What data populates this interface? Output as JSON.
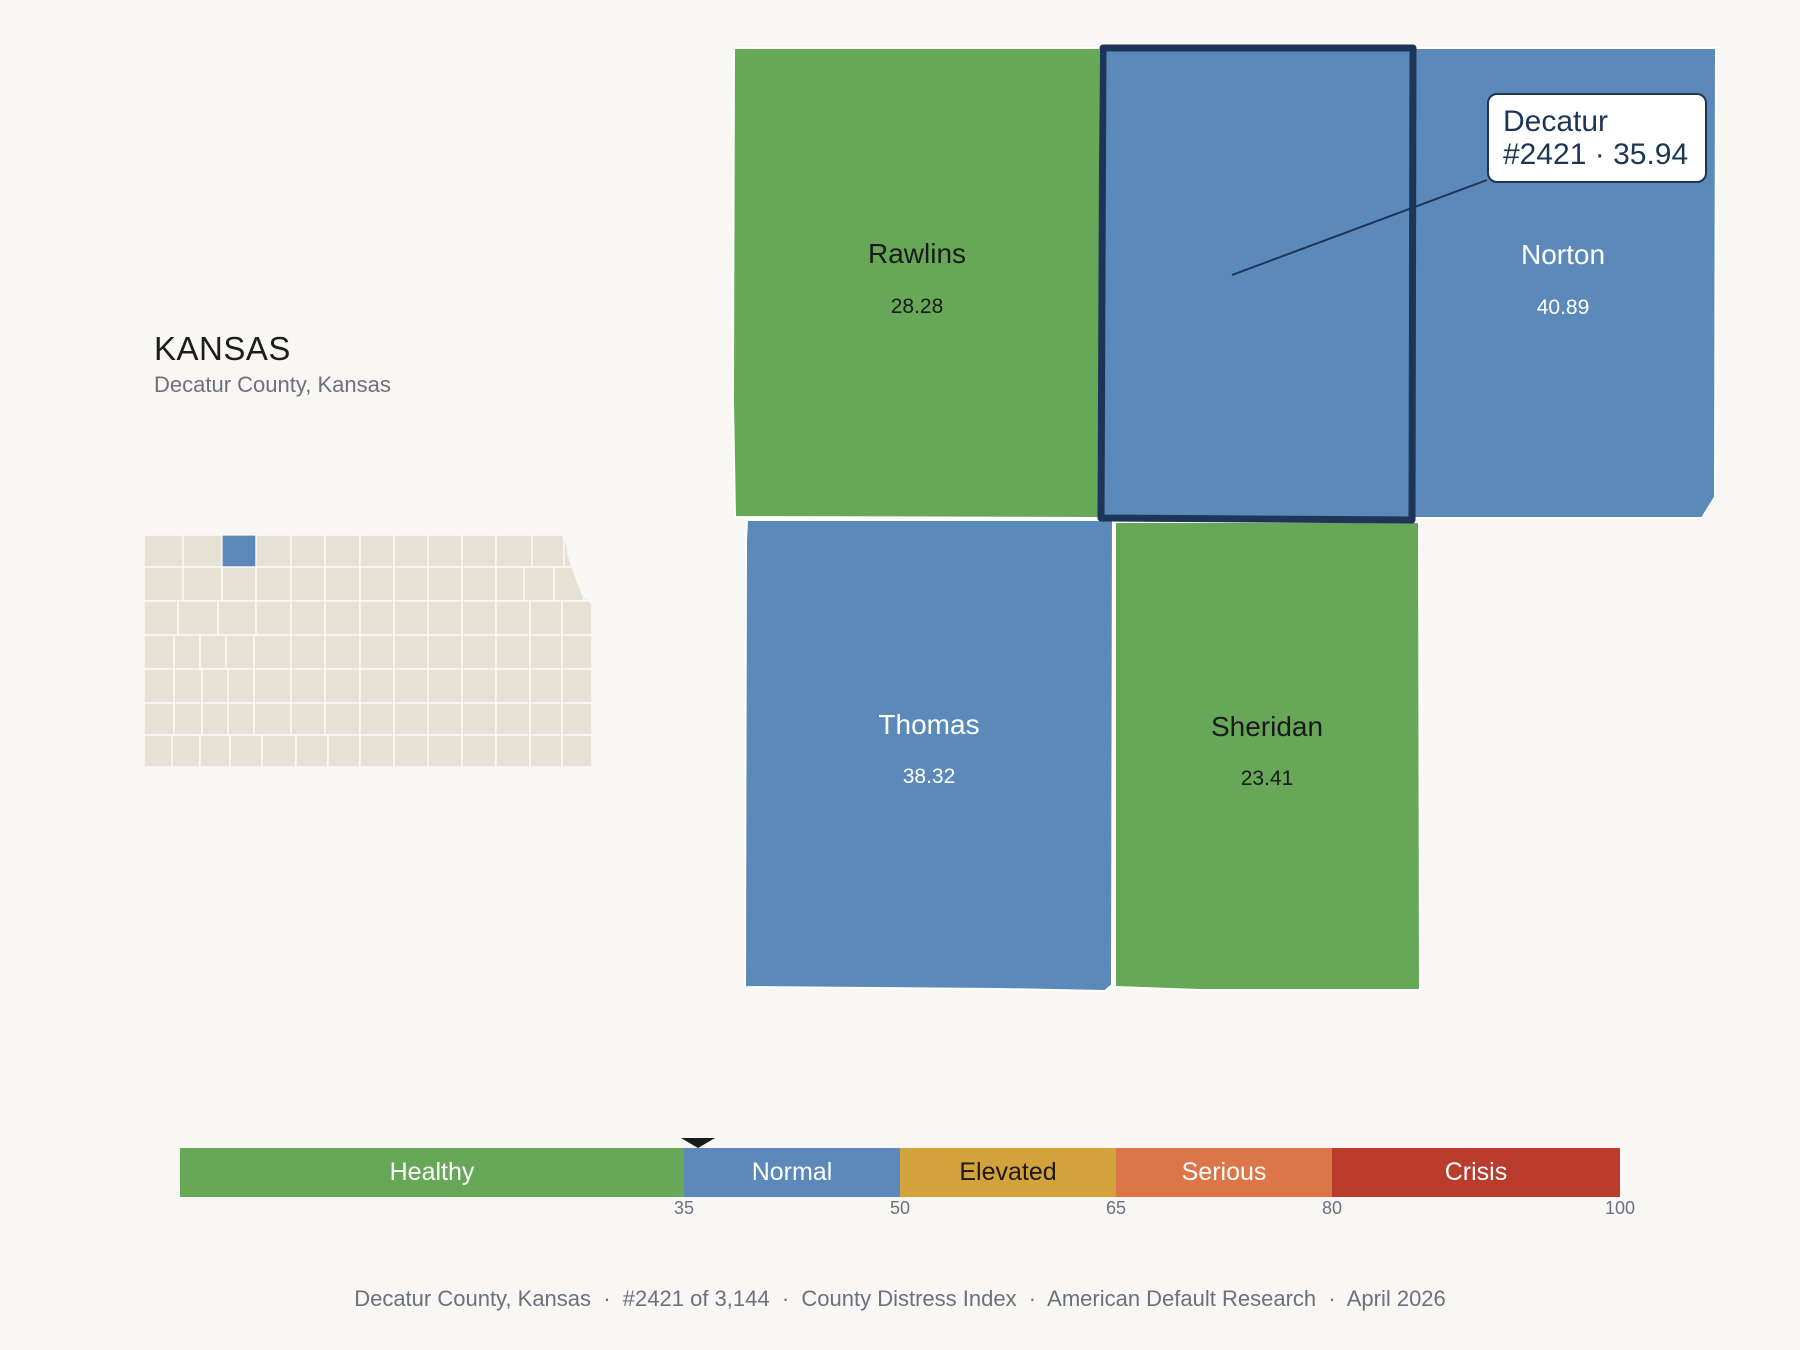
{
  "header": {
    "state": "KANSAS",
    "subtitle": "Decatur County, Kansas"
  },
  "counties": [
    {
      "name": "Rawlins",
      "value": "28.28",
      "band": "Healthy",
      "fill": "#66a758",
      "text_color": "#1a1a1a"
    },
    {
      "name": "Decatur",
      "value": "35.94",
      "band": "Normal",
      "fill": "#5b8aba",
      "text_color": "#ffffff",
      "selected": true
    },
    {
      "name": "Norton",
      "value": "40.89",
      "band": "Normal",
      "fill": "#5b8aba",
      "text_color": "#ffffff"
    },
    {
      "name": "Thomas",
      "value": "38.32",
      "band": "Normal",
      "fill": "#5b8aba",
      "text_color": "#ffffff"
    },
    {
      "name": "Sheridan",
      "value": "23.41",
      "band": "Healthy",
      "fill": "#66a758",
      "text_color": "#1a1a1a"
    }
  ],
  "callout": {
    "county": "Decatur",
    "detail": "#2421 · 35.94"
  },
  "locator": {
    "state_fill": "#e7e1d5",
    "highlight_fill": "#5b8aba",
    "border_color": "#ffffff"
  },
  "legend": {
    "bands": [
      {
        "label": "Healthy",
        "from": 0,
        "to": 35,
        "color": "#66a758",
        "text_color": "#ffffff"
      },
      {
        "label": "Normal",
        "from": 35,
        "to": 50,
        "color": "#5b8aba",
        "text_color": "#ffffff"
      },
      {
        "label": "Elevated",
        "from": 50,
        "to": 65,
        "color": "#d4a23a",
        "text_color": "#1a1a1a"
      },
      {
        "label": "Serious",
        "from": 65,
        "to": 80,
        "color": "#dc7548",
        "text_color": "#ffffff"
      },
      {
        "label": "Crisis",
        "from": 80,
        "to": 100,
        "color": "#b93c2c",
        "text_color": "#ffffff"
      }
    ],
    "ticks": [
      "35",
      "50",
      "65",
      "80",
      "100"
    ],
    "marker_value": 35.94
  },
  "footer": {
    "text": "Decatur County, Kansas  ·  #2421 of 3,144  ·  County Distress Index  ·  American Default Research  ·  April 2026"
  },
  "colors": {
    "background": "#f9f7f3",
    "selected_outline": "#1d3557"
  }
}
